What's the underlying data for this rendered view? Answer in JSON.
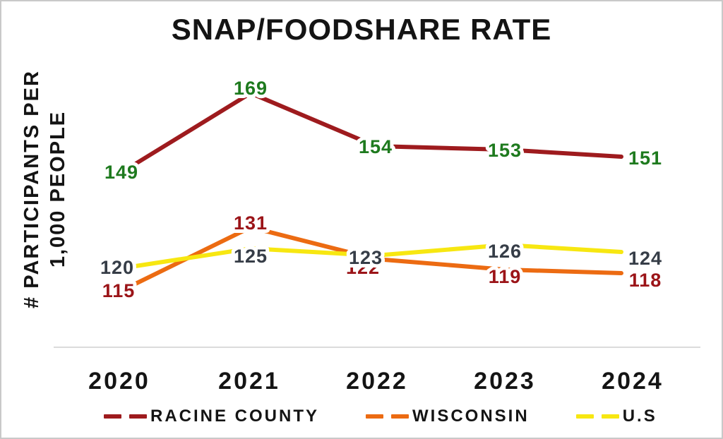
{
  "title": "SNAP/FOODSHARE RATE",
  "y_axis": {
    "line1": "# PARTICIPANTS PER",
    "line2": "1,000 PEOPLE"
  },
  "chart_data": {
    "type": "line",
    "title": "SNAP/FOODSHARE RATE",
    "ylabel": "# PARTICIPANTS PER 1,000 PEOPLE",
    "xlabel": "",
    "categories": [
      "2020",
      "2021",
      "2022",
      "2023",
      "2024"
    ],
    "series": [
      {
        "name": "RACINE COUNTY",
        "line_color": "#9E1B1E",
        "label_color": "#1E7A1E",
        "values": [
          149,
          169,
          154,
          153,
          151
        ]
      },
      {
        "name": "WISCONSIN",
        "line_color": "#EC6B12",
        "label_color": "#9B1418",
        "values": [
          115,
          131,
          122,
          119,
          118
        ]
      },
      {
        "name": "U.S",
        "line_color": "#F7E711",
        "label_color": "#363D47",
        "values": [
          120,
          125,
          123,
          126,
          124
        ]
      }
    ],
    "ylim": [
      110,
      178
    ],
    "grid": false,
    "legend_position": "bottom",
    "data_labels_shown": true,
    "line_style": "solid",
    "legend_marker_style": "dashed"
  },
  "colors": {
    "background": "#FFFFFF",
    "border": "#C9C9C9",
    "axis_line": "#DBDBDB",
    "text": "#141414"
  }
}
